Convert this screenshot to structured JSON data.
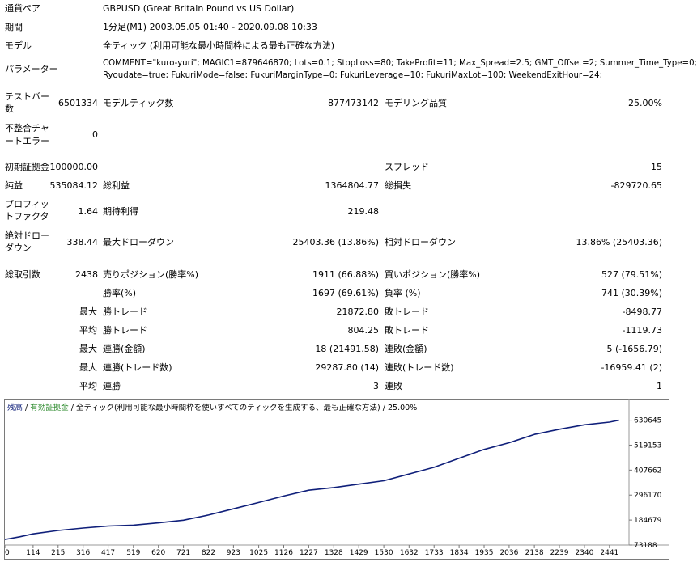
{
  "rows": {
    "currency_pair": {
      "label": "通貨ペア",
      "value": "GBPUSD (Great Britain Pound vs US Dollar)"
    },
    "period": {
      "label": "期間",
      "value": "1分足(M1) 2003.05.05 01:40 - 2020.09.08 10:33"
    },
    "model": {
      "label": "モデル",
      "value": "全ティック (利用可能な最小時間枠による最も正確な方法)"
    },
    "parameters": {
      "label": "パラメーター",
      "line1": "COMMENT=\"kuro-yuri\"; MAGIC1=879646870; Lots=0.1; StopLoss=80; TakeProfit=11; Max_Spread=2.5; GMT_Offset=2; Summer_Time_Type=0;",
      "line2": "Ryoudate=true; FukuriMode=false; FukuriMarginType=0; FukuriLeverage=10; FukuriMaxLot=100; WeekendExitHour=24;"
    }
  },
  "stats": {
    "test_bars": {
      "label1": "テストバー",
      "label2": "数",
      "value": "6501334"
    },
    "modeled_ticks": {
      "label": "モデルティック数",
      "value": "877473142"
    },
    "modeling_quality": {
      "label": "モデリング品質",
      "value": "25.00%"
    },
    "mismatched_errors": {
      "label1": "不整合チャ",
      "label2": "ートエラー",
      "value": "0"
    },
    "initial_deposit": {
      "label": "初期証拠金",
      "value": "100000.00"
    },
    "spread": {
      "label": "スプレッド",
      "value": "15"
    },
    "net_profit": {
      "label": "純益",
      "value": "535084.12"
    },
    "gross_profit": {
      "label": "総利益",
      "value": "1364804.77"
    },
    "gross_loss": {
      "label": "総損失",
      "value": "-829720.65"
    },
    "profit_factor": {
      "label1": "プロフィッ",
      "label2": "トファクタ",
      "value": "1.64"
    },
    "expected_payoff": {
      "label": "期待利得",
      "value": "219.48"
    },
    "absolute_drawdown": {
      "label1": "絶対ドロー",
      "label2": "ダウン",
      "value": "338.44"
    },
    "maximal_drawdown": {
      "label": "最大ドローダウン",
      "value": "25403.36 (13.86%)"
    },
    "relative_drawdown": {
      "label": "相対ドローダウン",
      "value": "13.86% (25403.36)"
    },
    "total_trades": {
      "label": "総取引数",
      "value": "2438"
    },
    "short_positions": {
      "label": "売りポジション(勝率%)",
      "value": "1911 (66.88%)"
    },
    "long_positions": {
      "label": "買いポジション(勝率%)",
      "value": "527 (79.51%)"
    },
    "win_rate": {
      "label": "勝率(%)",
      "value": "1697 (69.61%)"
    },
    "loss_rate": {
      "label": "負率 (%)",
      "value": "741 (30.39%)"
    },
    "largest_profit": {
      "prefix": "最大",
      "label": "勝トレード",
      "value": "21872.80"
    },
    "largest_loss": {
      "label": "敗トレード",
      "value": "-8498.77"
    },
    "average_profit": {
      "prefix": "平均",
      "label": "勝トレード",
      "value": "804.25"
    },
    "average_loss": {
      "label": "敗トレード",
      "value": "-1119.73"
    },
    "max_consec_wins": {
      "prefix": "最大",
      "label": "連勝(金額)",
      "value": "18 (21491.58)"
    },
    "max_consec_losses": {
      "label": "連敗(金額)",
      "value": "5 (-1656.79)"
    },
    "max_consec_profit": {
      "prefix": "最大",
      "label": "連勝(トレード数)",
      "value": "29287.80 (14)"
    },
    "max_consec_loss": {
      "label": "連敗(トレード数)",
      "value": "-16959.41 (2)"
    },
    "avg_consec_wins": {
      "prefix": "平均",
      "label": "連勝",
      "value": "3"
    },
    "avg_consec_losses": {
      "label": "連敗",
      "value": "1"
    }
  },
  "chart_data": {
    "type": "line",
    "legend": {
      "balance": "残高",
      "sep1": " / ",
      "equity": "有効証拠金",
      "sep2": " / ",
      "model": "全ティック(利用可能な最小時間枠を使いすべてのティックを生成する、最も正確な方法)",
      "sep3": " / ",
      "quality": "25.00%"
    },
    "x_ticks": [
      "0",
      "114",
      "215",
      "316",
      "417",
      "519",
      "620",
      "721",
      "822",
      "923",
      "1025",
      "1126",
      "1227",
      "1328",
      "1429",
      "1530",
      "1632",
      "1733",
      "1834",
      "1935",
      "2036",
      "2138",
      "2239",
      "2340",
      "2441"
    ],
    "y_ticks": [
      "630645",
      "519153",
      "407662",
      "296170",
      "184679",
      "73188"
    ],
    "xlim": [
      0,
      2520
    ],
    "ylim": [
      73188,
      658000
    ],
    "series": [
      {
        "color": "#0f1f7a",
        "x": [
          0,
          60,
          114,
          215,
          316,
          417,
          519,
          620,
          721,
          822,
          923,
          1025,
          1126,
          1227,
          1328,
          1429,
          1530,
          1632,
          1733,
          1834,
          1935,
          2036,
          2138,
          2239,
          2340,
          2441,
          2480
        ],
        "y": [
          98000,
          110000,
          123000,
          138000,
          149000,
          158000,
          162000,
          172000,
          184000,
          207000,
          235000,
          263000,
          292000,
          318000,
          330000,
          345000,
          360000,
          390000,
          420000,
          460000,
          500000,
          530000,
          567000,
          590000,
          610000,
          622000,
          630645
        ]
      }
    ]
  }
}
